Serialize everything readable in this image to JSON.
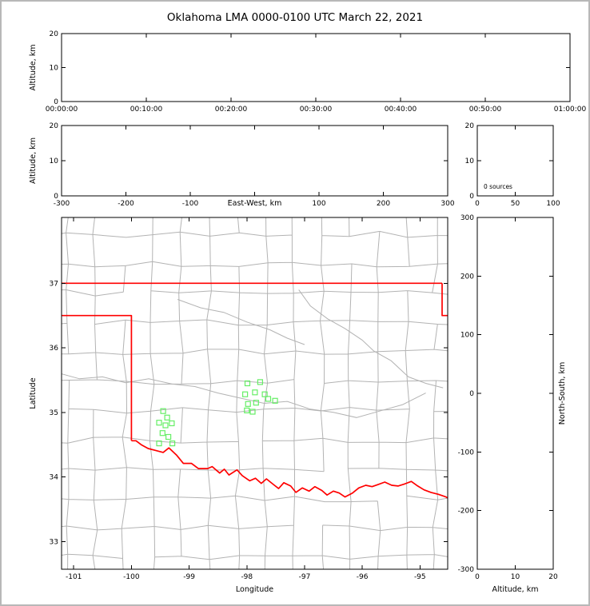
{
  "title": "Oklahoma LMA 0000-0100 UTC March 22, 2021",
  "colors": {
    "background": "#ffffff",
    "outer_border": "#b8b8b8",
    "axes": "#000000",
    "county": "#b3b3b3",
    "river": "#b3b3b3",
    "state_border": "#ff0000",
    "source": "#66ee66"
  },
  "chart_data": [
    {
      "id": "time_height",
      "type": "scatter",
      "xlabel": "",
      "ylabel": "Altitude, km",
      "ylabel_side": "left",
      "xlim": [
        0,
        3600
      ],
      "ylim": [
        0,
        20
      ],
      "xtick_values": [
        0,
        600,
        1200,
        1800,
        2400,
        3000,
        3600
      ],
      "xtick_labels": [
        "00:00:00",
        "00:10:00",
        "00:20:00",
        "00:30:00",
        "00:40:00",
        "00:50:00",
        "01:00:00"
      ],
      "ytick_values": [
        0,
        10,
        20
      ],
      "ytick_labels": [
        "0",
        "10",
        "20"
      ],
      "points": []
    },
    {
      "id": "ew_height",
      "type": "scatter",
      "xlabel": "East-West, km",
      "xlabel_inline": true,
      "xlabel_x": 0,
      "ylabel": "Altitude, km",
      "ylabel_side": "left",
      "xlim": [
        -300,
        300
      ],
      "ylim": [
        0,
        20
      ],
      "xtick_values": [
        -300,
        -200,
        -100,
        0,
        100,
        200,
        300
      ],
      "xtick_labels": [
        "-300",
        "-200",
        "-100",
        "",
        "100",
        "200",
        "300"
      ],
      "ytick_values": [
        0,
        10,
        20
      ],
      "ytick_labels": [
        "0",
        "10",
        "20"
      ],
      "points": []
    },
    {
      "id": "histogram",
      "type": "bar",
      "xlabel": "",
      "ylabel": "",
      "xlim": [
        0,
        100
      ],
      "ylim": [
        0,
        20
      ],
      "xtick_values": [
        0,
        50,
        100
      ],
      "xtick_labels": [
        "0",
        "50",
        "100"
      ],
      "ytick_values": [
        0,
        10,
        20
      ],
      "ytick_labels": [
        "0",
        "10",
        "20"
      ],
      "annotation": "0 sources",
      "values": []
    },
    {
      "id": "plan_view",
      "type": "scatter",
      "xlabel": "Longitude",
      "ylabel": "Latitude",
      "ylabel_side": "left",
      "xlim": [
        -101.21,
        -94.52
      ],
      "ylim": [
        32.57,
        38.02
      ],
      "xtick_values": [
        -101,
        -100,
        -99,
        -98,
        -97,
        -96,
        -95
      ],
      "xtick_labels": [
        "-101",
        "-100",
        "-99",
        "-98",
        "-97",
        "-96",
        "-95"
      ],
      "ytick_values": [
        33,
        34,
        35,
        36,
        37
      ],
      "ytick_labels": [
        "33",
        "34",
        "35",
        "36",
        "37"
      ],
      "sources": [
        [
          -97.99,
          35.45
        ],
        [
          -97.77,
          35.47
        ],
        [
          -98.03,
          35.28
        ],
        [
          -97.86,
          35.31
        ],
        [
          -97.69,
          35.28
        ],
        [
          -97.98,
          35.13
        ],
        [
          -97.84,
          35.15
        ],
        [
          -97.63,
          35.21
        ],
        [
          -97.51,
          35.18
        ],
        [
          -97.9,
          35.01
        ],
        [
          -98.0,
          35.03
        ],
        [
          -99.45,
          35.02
        ],
        [
          -99.38,
          34.92
        ],
        [
          -99.52,
          34.84
        ],
        [
          -99.41,
          34.8
        ],
        [
          -99.3,
          34.83
        ],
        [
          -99.46,
          34.68
        ],
        [
          -99.36,
          34.62
        ],
        [
          -99.52,
          34.52
        ],
        [
          -99.29,
          34.52
        ]
      ],
      "state_lines": [
        [
          [
            -101.3,
            37.0
          ],
          [
            -94.617,
            37.0
          ]
        ],
        [
          [
            -94.617,
            37.0
          ],
          [
            -94.617,
            36.5
          ],
          [
            -94.4,
            36.5
          ]
        ],
        [
          [
            -101.3,
            36.5
          ],
          [
            -100.0,
            36.5
          ],
          [
            -100.0,
            34.563
          ]
        ],
        [
          [
            -100.0,
            34.56
          ],
          [
            -99.92,
            34.56
          ],
          [
            -99.83,
            34.5
          ],
          [
            -99.71,
            34.44
          ],
          [
            -99.58,
            34.41
          ],
          [
            -99.45,
            34.38
          ],
          [
            -99.35,
            34.45
          ],
          [
            -99.22,
            34.34
          ],
          [
            -99.1,
            34.21
          ],
          [
            -98.96,
            34.21
          ],
          [
            -98.84,
            34.13
          ],
          [
            -98.68,
            34.13
          ],
          [
            -98.6,
            34.16
          ],
          [
            -98.47,
            34.06
          ],
          [
            -98.39,
            34.12
          ],
          [
            -98.31,
            34.03
          ],
          [
            -98.17,
            34.11
          ],
          [
            -98.08,
            34.02
          ],
          [
            -97.95,
            33.94
          ],
          [
            -97.85,
            33.98
          ],
          [
            -97.75,
            33.9
          ],
          [
            -97.66,
            33.97
          ],
          [
            -97.55,
            33.89
          ],
          [
            -97.45,
            33.82
          ],
          [
            -97.36,
            33.91
          ],
          [
            -97.24,
            33.86
          ],
          [
            -97.15,
            33.76
          ],
          [
            -97.04,
            33.83
          ],
          [
            -96.92,
            33.78
          ],
          [
            -96.82,
            33.85
          ],
          [
            -96.7,
            33.79
          ],
          [
            -96.61,
            33.72
          ],
          [
            -96.5,
            33.78
          ],
          [
            -96.4,
            33.75
          ],
          [
            -96.3,
            33.69
          ],
          [
            -96.17,
            33.75
          ],
          [
            -96.06,
            33.83
          ],
          [
            -95.94,
            33.87
          ],
          [
            -95.83,
            33.85
          ],
          [
            -95.73,
            33.88
          ],
          [
            -95.61,
            33.92
          ],
          [
            -95.49,
            33.87
          ],
          [
            -95.38,
            33.86
          ],
          [
            -95.27,
            33.89
          ],
          [
            -95.15,
            33.93
          ],
          [
            -95.04,
            33.86
          ],
          [
            -94.93,
            33.8
          ],
          [
            -94.81,
            33.76
          ],
          [
            -94.68,
            33.73
          ],
          [
            -94.55,
            33.69
          ],
          [
            -94.43,
            33.63
          ]
        ]
      ],
      "rivers": [
        [
          [
            -101.3,
            35.62
          ],
          [
            -100.9,
            35.52
          ],
          [
            -100.5,
            35.55
          ],
          [
            -100.1,
            35.46
          ],
          [
            -99.7,
            35.52
          ],
          [
            -99.3,
            35.44
          ],
          [
            -98.9,
            35.4
          ],
          [
            -98.5,
            35.3
          ],
          [
            -98.1,
            35.22
          ],
          [
            -97.7,
            35.14
          ],
          [
            -97.3,
            35.17
          ],
          [
            -96.9,
            35.05
          ],
          [
            -96.5,
            35.0
          ],
          [
            -96.1,
            34.92
          ],
          [
            -95.7,
            35.02
          ],
          [
            -95.3,
            35.12
          ],
          [
            -94.9,
            35.3
          ]
        ],
        [
          [
            -97.1,
            36.9
          ],
          [
            -96.9,
            36.65
          ],
          [
            -96.6,
            36.45
          ],
          [
            -96.3,
            36.3
          ],
          [
            -96.0,
            36.12
          ],
          [
            -95.8,
            35.95
          ],
          [
            -95.5,
            35.8
          ],
          [
            -95.2,
            35.55
          ],
          [
            -94.9,
            35.45
          ],
          [
            -94.6,
            35.38
          ]
        ],
        [
          [
            -99.2,
            36.75
          ],
          [
            -98.8,
            36.62
          ],
          [
            -98.4,
            36.55
          ],
          [
            -98.0,
            36.4
          ],
          [
            -97.6,
            36.28
          ],
          [
            -97.3,
            36.15
          ],
          [
            -97.0,
            36.05
          ]
        ]
      ],
      "county_grid": {
        "lon0": -101.6,
        "dlon": 0.49,
        "cols": 16,
        "lat0": 32.3,
        "dlat": 0.455,
        "rows": 14,
        "jitter": 0.1,
        "skip": 0.08,
        "seed": 12345
      }
    },
    {
      "id": "ns_height",
      "type": "scatter",
      "xlabel": "Altitude, km",
      "ylabel": "North-South, km",
      "ylabel_side": "right",
      "xlim": [
        0,
        20
      ],
      "ylim": [
        -300,
        300
      ],
      "xtick_values": [
        0,
        10,
        20
      ],
      "xtick_labels": [
        "0",
        "10",
        "20"
      ],
      "ytick_values": [
        -300,
        -200,
        -100,
        0,
        100,
        200,
        300
      ],
      "ytick_labels": [
        "-300",
        "-200",
        "-100",
        "0",
        "100",
        "200",
        "300"
      ],
      "points": []
    }
  ]
}
